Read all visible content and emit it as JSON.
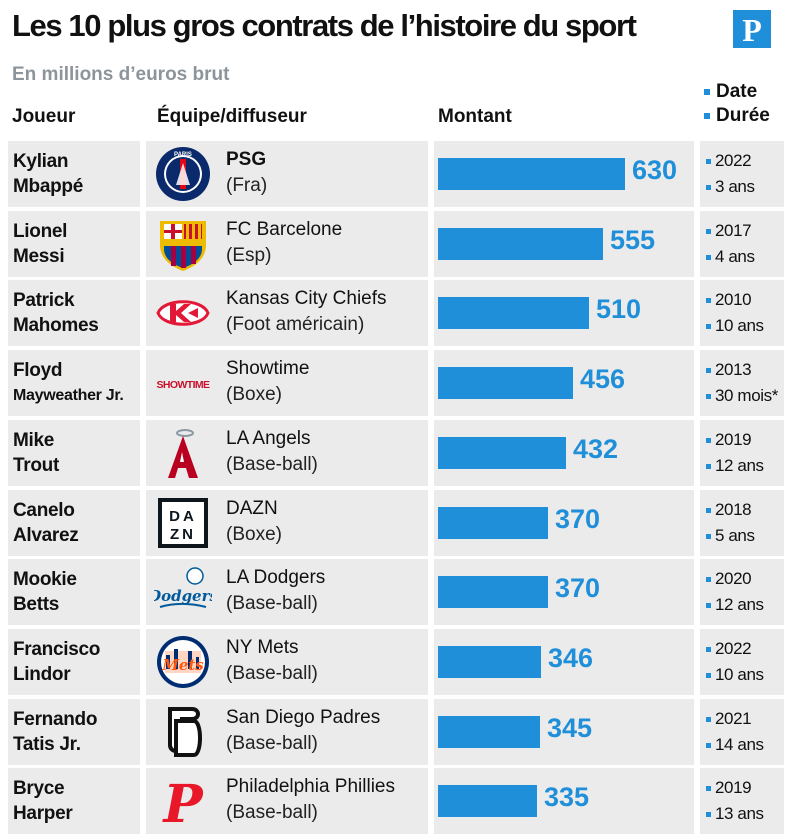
{
  "header": {
    "title": "Les 10 plus gros contrats de l’histoire du sport",
    "logo": "P",
    "subtitle": "En millions d’euros brut",
    "col_player": "Joueur",
    "col_team": "Équipe/diffuseur",
    "col_amount": "Montant",
    "legend_date": "Date",
    "legend_duration": "Durée"
  },
  "colors": {
    "accent": "#1f8fd9",
    "row_bg": "#ebebeb"
  },
  "chart_data": {
    "type": "bar",
    "title": "Les 10 plus gros contrats de l’histoire du sport",
    "subtitle": "En millions d’euros brut",
    "orientation": "horizontal",
    "xlim": [
      0,
      630
    ],
    "categories": [
      "Kylian Mbappé",
      "Lionel Messi",
      "Patrick Mahomes",
      "Floyd Mayweather Jr.",
      "Mike Trout",
      "Canelo Alvarez",
      "Mookie Betts",
      "Francisco Lindor",
      "Fernando Tatis Jr.",
      "Bryce Harper"
    ],
    "values": [
      630,
      555,
      510,
      456,
      432,
      370,
      370,
      346,
      345,
      335
    ],
    "rows": [
      {
        "player": [
          "Kylian",
          "Mbappé"
        ],
        "team": "PSG",
        "category": "(Fra)",
        "value": 630,
        "date": "2022",
        "duration": "3 ans",
        "logo": "psg-logo",
        "small": false,
        "bold_team": true
      },
      {
        "player": [
          "Lionel",
          "Messi"
        ],
        "team": "FC Barcelone",
        "category": "(Esp)",
        "value": 555,
        "date": "2017",
        "duration": "4 ans",
        "logo": "barcelona-logo",
        "small": false,
        "bold_team": false
      },
      {
        "player": [
          "Patrick",
          "Mahomes"
        ],
        "team": "Kansas City Chiefs",
        "category": "(Foot américain)",
        "value": 510,
        "date": "2010",
        "duration": "10 ans",
        "logo": "chiefs-logo",
        "small": false,
        "bold_team": false
      },
      {
        "player": [
          "Floyd",
          "Mayweather Jr."
        ],
        "team": "Showtime",
        "category": "(Boxe)",
        "value": 456,
        "date": "2013",
        "duration": "30 mois*",
        "logo": "showtime-logo",
        "logo_text": "SHOWTIME",
        "small": true,
        "bold_team": false
      },
      {
        "player": [
          "Mike",
          "Trout"
        ],
        "team": "LA Angels",
        "category": "(Base-ball)",
        "value": 432,
        "date": "2019",
        "duration": "12 ans",
        "logo": "angels-logo",
        "small": false,
        "bold_team": false
      },
      {
        "player": [
          "Canelo",
          "Alvarez"
        ],
        "team": "DAZN",
        "category": "(Boxe)",
        "value": 370,
        "date": "2018",
        "duration": "5 ans",
        "logo": "dazn-logo",
        "small": false,
        "bold_team": false
      },
      {
        "player": [
          "Mookie",
          "Betts"
        ],
        "team": "LA Dodgers",
        "category": "(Base-ball)",
        "value": 370,
        "date": "2020",
        "duration": "12 ans",
        "logo": "dodgers-logo",
        "small": false,
        "bold_team": false
      },
      {
        "player": [
          "Francisco",
          "Lindor"
        ],
        "team": "NY Mets",
        "category": "(Base-ball)",
        "value": 346,
        "date": "2022",
        "duration": "10 ans",
        "logo": "mets-logo",
        "small": false,
        "bold_team": false
      },
      {
        "player": [
          "Fernando",
          "Tatis Jr."
        ],
        "team": "San Diego Padres",
        "category": "(Base-ball)",
        "value": 345,
        "date": "2021",
        "duration": "14 ans",
        "logo": "padres-logo",
        "small": false,
        "bold_team": false
      },
      {
        "player": [
          "Bryce",
          "Harper"
        ],
        "team": "Philadelphia Phillies",
        "category": "(Base-ball)",
        "value": 335,
        "date": "2019",
        "duration": "13 ans",
        "logo": "phillies-logo",
        "small": false,
        "bold_team": false
      }
    ]
  }
}
